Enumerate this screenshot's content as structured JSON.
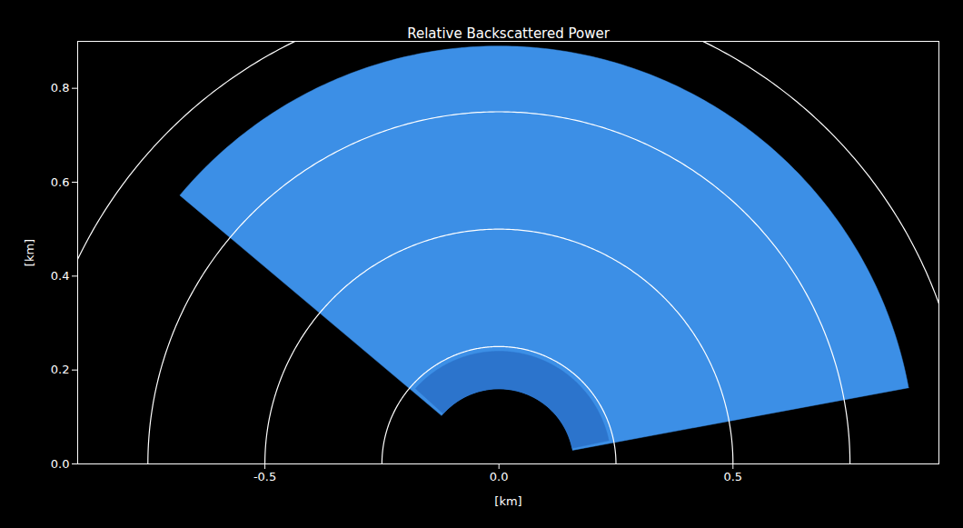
{
  "chart_data": {
    "type": "sector",
    "title": "Relative Backscattered Power",
    "xlabel": "[km]",
    "ylabel": "[km]",
    "xlim": [
      -0.9,
      0.94
    ],
    "ylim": [
      0,
      0.9
    ],
    "xticks": [
      -0.5,
      {
        "value": 0,
        "label": "0.0"
      },
      0.5
    ],
    "yticks": [
      {
        "value": 0,
        "label": "0.0"
      },
      0.2,
      0.4,
      0.6,
      0.8
    ],
    "rings": [
      0.25,
      0.5,
      0.75,
      1.0
    ],
    "ring_color": "#ffffff",
    "sectors": [
      {
        "range": [
          0.16,
          0.89
        ],
        "azimuth": [
          10.5,
          140
        ],
        "color": "#3c8fe6"
      },
      {
        "range": [
          0.16,
          0.24
        ],
        "azimuth": [
          12,
          138
        ],
        "color": "#2c74cc"
      }
    ]
  }
}
